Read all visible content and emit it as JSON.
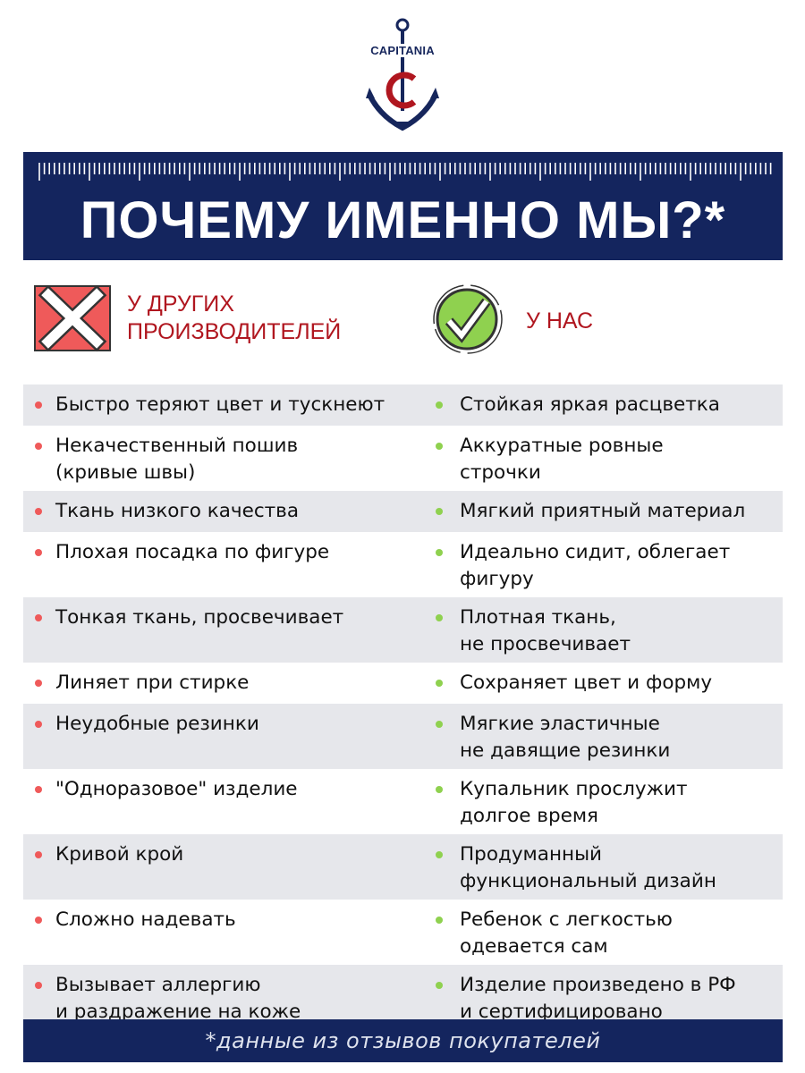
{
  "brand": {
    "name": "CAPITANIA",
    "navy": "#14255e",
    "red": "#b0161f"
  },
  "header": {
    "title": "ПОЧЕМУ ИМЕННО МЫ?*"
  },
  "legend": {
    "others": {
      "label_line1": "У ДРУГИХ",
      "label_line2": "ПРОИЗВОДИТЕЛЕЙ",
      "icon": "x-mark-icon",
      "color": "#ef5a5a"
    },
    "ours": {
      "label": "У НАС",
      "icon": "check-mark-icon",
      "color": "#8fd14f"
    }
  },
  "rows": [
    {
      "others": [
        "Быстро теряют цвет и тускнеют"
      ],
      "ours": [
        "Стойкая яркая расцветка"
      ]
    },
    {
      "others": [
        "Некачественный пошив",
        "(кривые швы)"
      ],
      "ours": [
        "Аккуратные ровные",
        "строчки"
      ]
    },
    {
      "others": [
        "Ткань низкого качества"
      ],
      "ours": [
        "Мягкий приятный материал"
      ]
    },
    {
      "others": [
        "Плохая посадка по фигуре"
      ],
      "ours": [
        "Идеально сидит, облегает",
        "фигуру"
      ]
    },
    {
      "others": [
        "Тонкая ткань, просвечивает"
      ],
      "ours": [
        "Плотная ткань,",
        "не просвечивает"
      ]
    },
    {
      "others": [
        "Линяет при стирке"
      ],
      "ours": [
        "Сохраняет цвет и форму"
      ]
    },
    {
      "others": [
        "Неудобные резинки"
      ],
      "ours": [
        "Мягкие эластичные",
        "не давящие резинки"
      ]
    },
    {
      "others": [
        "\"Одноразовое\" изделие"
      ],
      "ours": [
        "Купальник прослужит",
        "долгое время"
      ]
    },
    {
      "others": [
        "Кривой крой"
      ],
      "ours": [
        "Продуманный",
        "функциональный дизайн"
      ]
    },
    {
      "others": [
        "Сложно надевать"
      ],
      "ours": [
        "Ребенок с легкостью",
        "одевается сам"
      ]
    },
    {
      "others": [
        "Вызывает аллергию",
        "и раздражение на коже"
      ],
      "ours": [
        "Изделие произведено в РФ",
        "и сертифицировано"
      ]
    }
  ],
  "footer": {
    "note": "*данные из отзывов покупателей"
  }
}
